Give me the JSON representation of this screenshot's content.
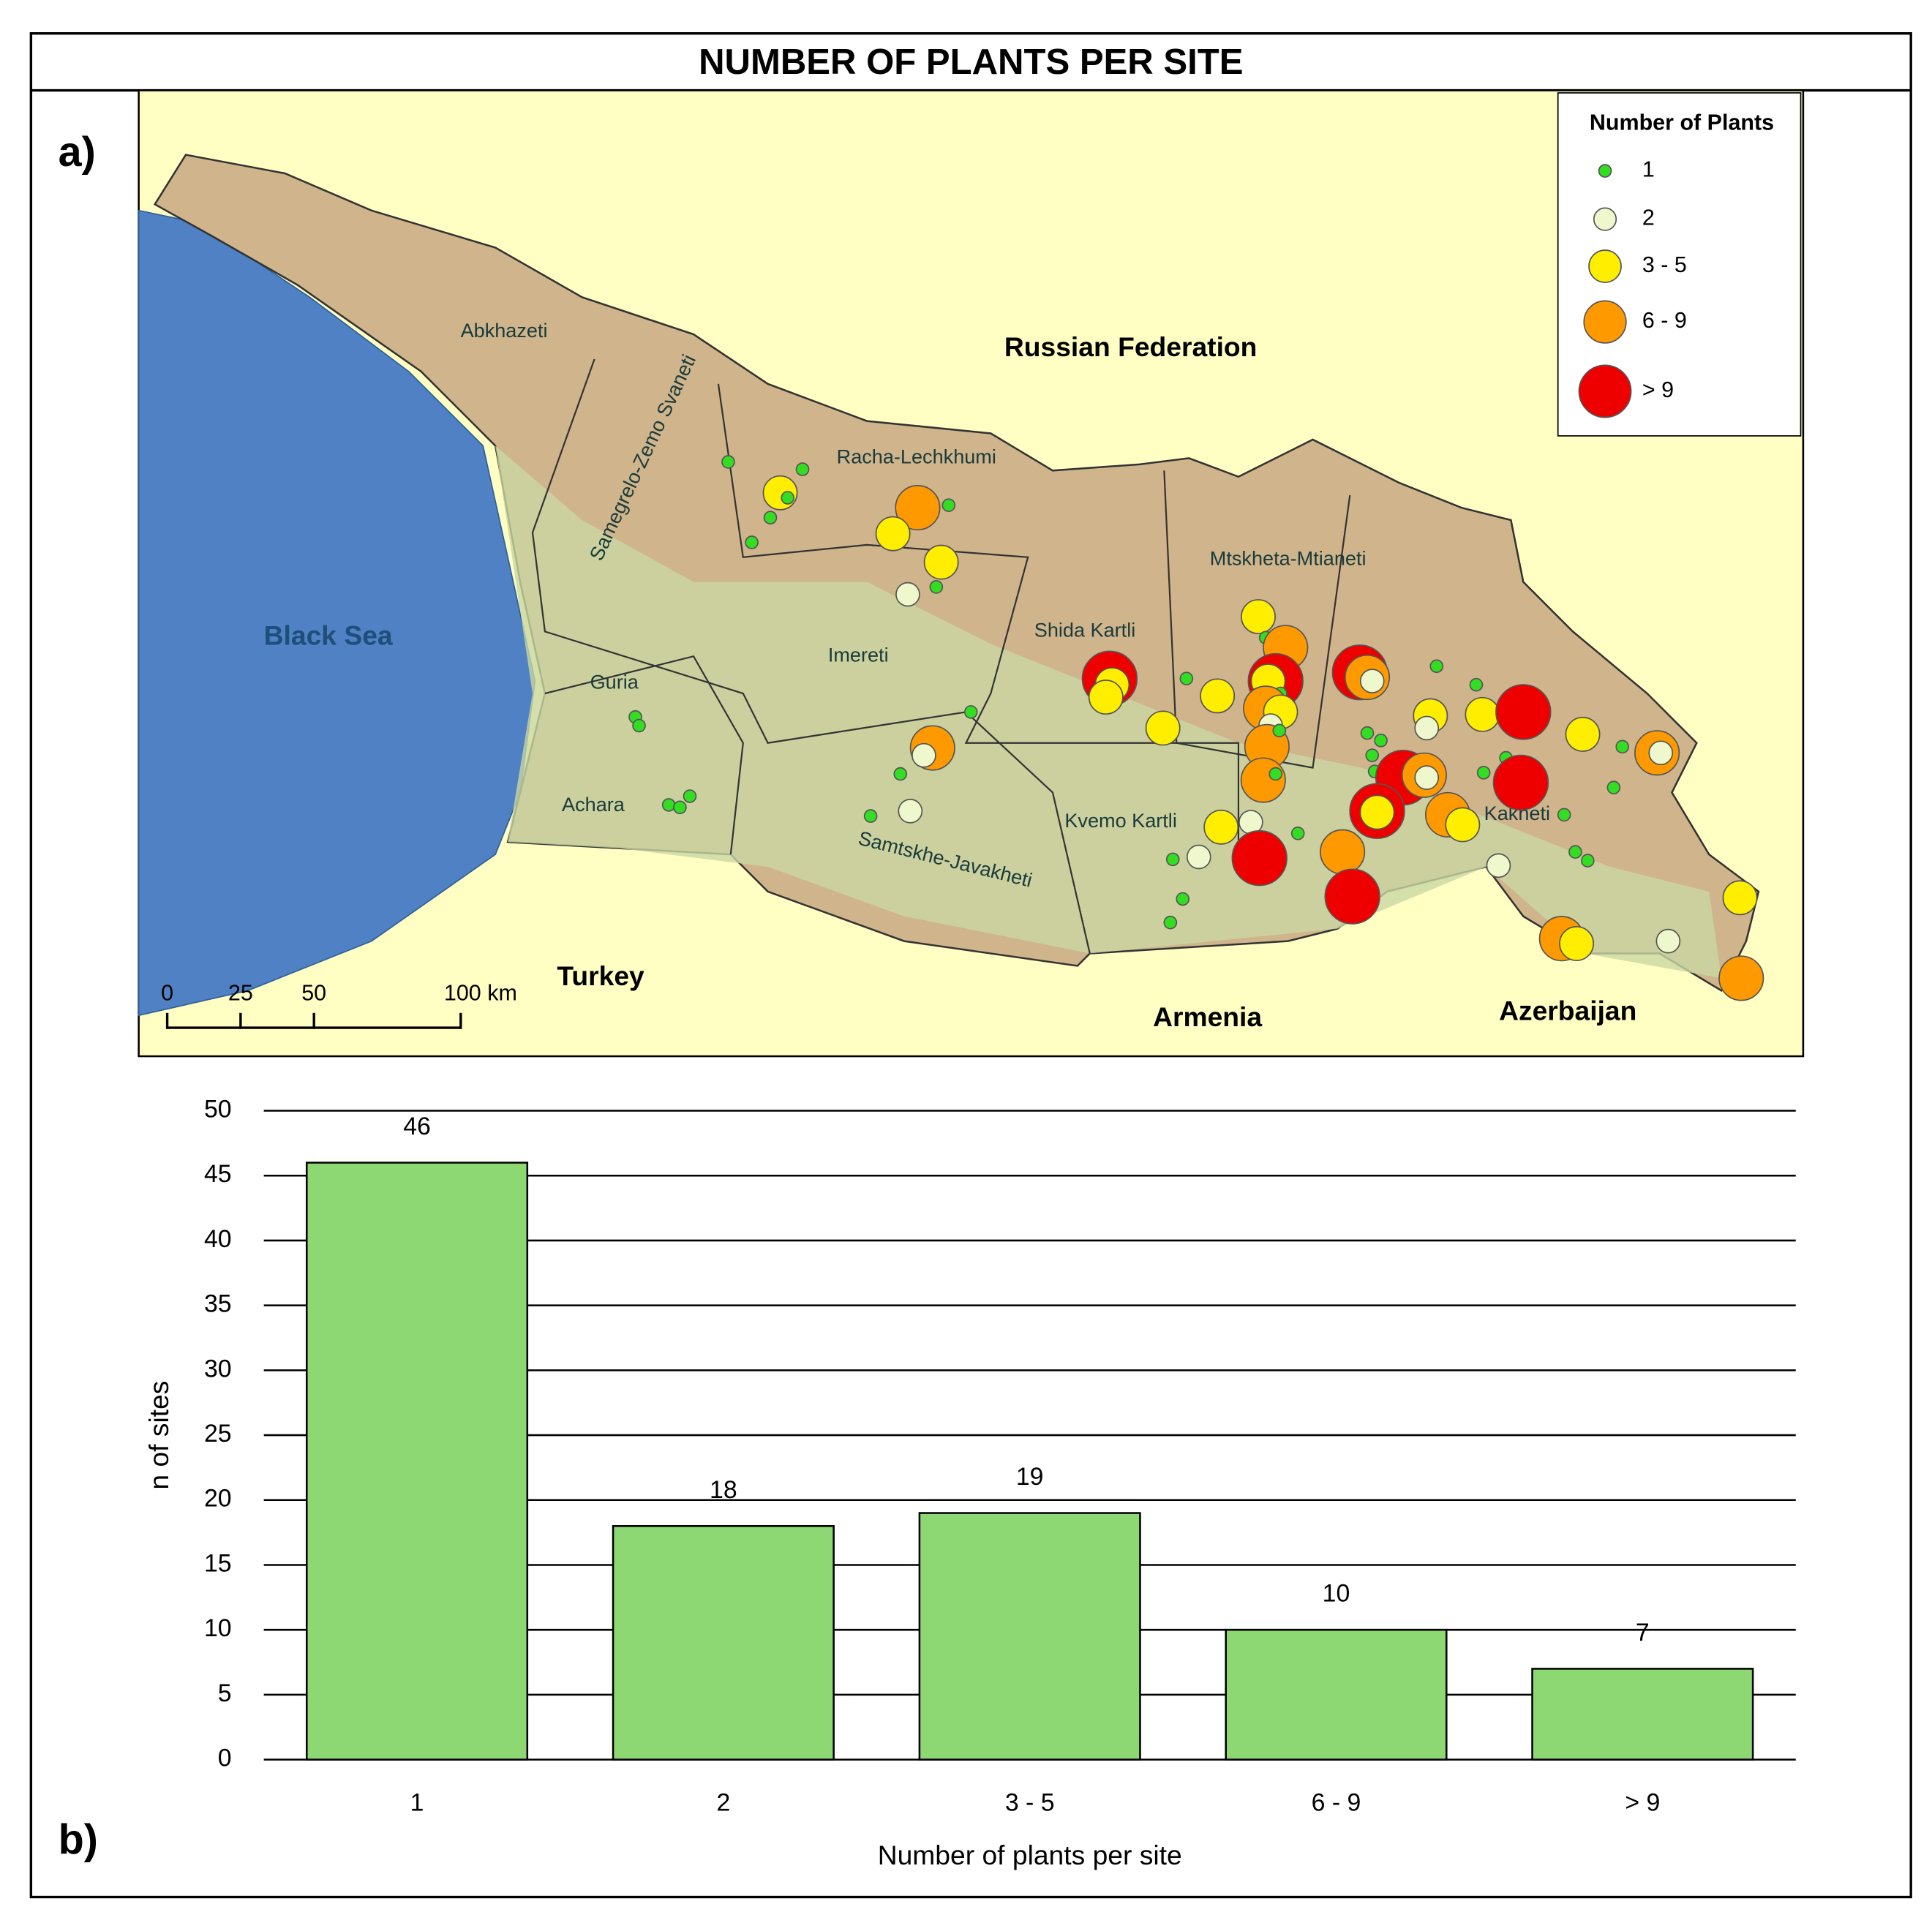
{
  "title": "NUMBER OF PLANTS PER SITE",
  "chart_data": [
    {
      "type": "map",
      "label": "a)",
      "legend": {
        "title": "Number of Plants",
        "items": [
          {
            "label": "1",
            "color": "#33dd22"
          },
          {
            "label": "2",
            "color": "#eef8cc"
          },
          {
            "label": "3 - 5",
            "color": "#ffee00"
          },
          {
            "label": "6 - 9",
            "color": "#ff9900"
          },
          {
            "label": "> 9",
            "color": "#ee0000"
          }
        ]
      },
      "sea": "Black Sea",
      "countries": [
        "Russian Federation",
        "Turkey",
        "Armenia",
        "Azerbaijan"
      ],
      "regions": [
        "Abkhazeti",
        "Samegrelo-Zemo Svaneti",
        "Racha-Lechkhumi",
        "Imereti",
        "Guria",
        "Achara",
        "Samtskhe-Javakheti",
        "Shida Kartli",
        "Mtskheta-Mtianeti",
        "Kvemo Kartli",
        "Kakheti"
      ],
      "scale_bar": {
        "ticks": [
          0,
          25,
          50,
          {
            "value": 100,
            "label": "100 km"
          }
        ]
      }
    },
    {
      "type": "bar",
      "label": "b)",
      "categories": [
        "1",
        "2",
        "3 - 5",
        "6 - 9",
        "> 9"
      ],
      "values": [
        46,
        18,
        19,
        10,
        7
      ],
      "color": "#8ed873",
      "ylim": [
        0,
        50
      ],
      "yticks": [
        0,
        5,
        10,
        15,
        20,
        25,
        30,
        35,
        40,
        45,
        50
      ],
      "grid": true,
      "x_label": "Number of plants per site",
      "y_label": "n of sites"
    }
  ]
}
